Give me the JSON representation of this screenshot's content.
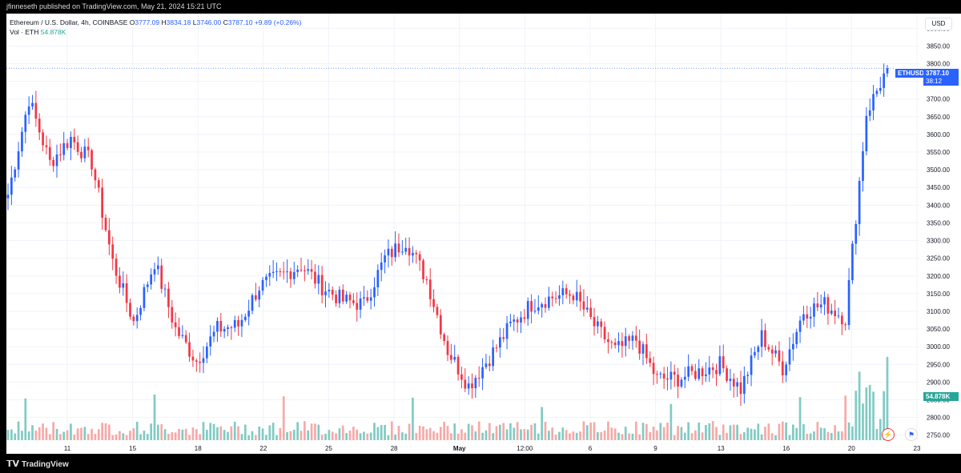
{
  "header": {
    "publisher": "jfinneseth published on TradingView.com, May 21, 2024 15:21 UTC",
    "symbol_desc": "Ethereum / U.S. Dollar, 4h, COINBASE",
    "ohlc": {
      "o_label": "O",
      "open": "3777.09",
      "h_label": "H",
      "high": "3834.18",
      "l_label": "L",
      "low": "3746.00",
      "c_label": "C",
      "close": "3787.10",
      "change": "+9.89 (+0.26%)"
    },
    "vol_label": "Vol · ETH",
    "vol_value": "54.878K"
  },
  "axis": {
    "currency": "USD",
    "price_ticks": [
      "3900.00",
      "3850.00",
      "3800.00",
      "3750.00",
      "3700.00",
      "3650.00",
      "3600.00",
      "3550.00",
      "3500.00",
      "3450.00",
      "3400.00",
      "3350.00",
      "3300.00",
      "3250.00",
      "3200.00",
      "3150.00",
      "3100.00",
      "3050.00",
      "3000.00",
      "2950.00",
      "2900.00",
      "2850.00",
      "2800.00",
      "2750.00"
    ],
    "time_ticks": [
      "11",
      "15",
      "18",
      "22",
      "25",
      "28",
      "May",
      "12:00",
      "6",
      "9",
      "13",
      "16",
      "20",
      "23"
    ]
  },
  "badges": {
    "ticker": "ETHUSD",
    "last_price": "3787.10",
    "countdown": "38:12",
    "volume": "54.878K"
  },
  "footer": {
    "logo_mark": "𝗧𝗩",
    "logo_text": "TradingView"
  },
  "colors": {
    "up": "#2962ff",
    "down": "#f23645",
    "vol_up": "#80cbc4",
    "vol_down": "#f7a9a7"
  },
  "icons": {
    "alert": "flash-icon",
    "flag": "us-flag-icon"
  },
  "chart_data": {
    "type": "candlestick",
    "symbol": "ETHUSD",
    "interval": "4h",
    "ylim": [
      2720,
      3930
    ],
    "grid": true,
    "approx_close_path": [
      {
        "x": "Apr 8",
        "close": 3430
      },
      {
        "x": "Apr 9",
        "close": 3700
      },
      {
        "x": "Apr 10",
        "close": 3520
      },
      {
        "x": "Apr 11",
        "close": 3590
      },
      {
        "x": "Apr 12",
        "close": 3520
      },
      {
        "x": "Apr 13",
        "close": 3240
      },
      {
        "x": "Apr 14",
        "close": 3070
      },
      {
        "x": "Apr 15",
        "close": 3240
      },
      {
        "x": "Apr 16",
        "close": 3050
      },
      {
        "x": "Apr 17",
        "close": 2960
      },
      {
        "x": "Apr 18",
        "close": 3050
      },
      {
        "x": "Apr 19",
        "close": 3060
      },
      {
        "x": "Apr 20",
        "close": 3170
      },
      {
        "x": "Apr 22",
        "close": 3200
      },
      {
        "x": "Apr 23",
        "close": 3230
      },
      {
        "x": "Apr 24",
        "close": 3170
      },
      {
        "x": "Apr 25",
        "close": 3130
      },
      {
        "x": "Apr 26",
        "close": 3120
      },
      {
        "x": "Apr 27",
        "close": 3250
      },
      {
        "x": "Apr 28",
        "close": 3300
      },
      {
        "x": "Apr 29",
        "close": 3190
      },
      {
        "x": "Apr 30",
        "close": 2990
      },
      {
        "x": "May 1",
        "close": 2890
      },
      {
        "x": "May 2",
        "close": 2970
      },
      {
        "x": "May 3",
        "close": 3060
      },
      {
        "x": "May 4",
        "close": 3120
      },
      {
        "x": "May 5",
        "close": 3140
      },
      {
        "x": "May 6",
        "close": 3150
      },
      {
        "x": "May 7",
        "close": 3060
      },
      {
        "x": "May 8",
        "close": 2990
      },
      {
        "x": "May 9",
        "close": 3020
      },
      {
        "x": "May 10",
        "close": 2910
      },
      {
        "x": "May 11",
        "close": 2910
      },
      {
        "x": "May 12",
        "close": 2930
      },
      {
        "x": "May 13",
        "close": 2950
      },
      {
        "x": "May 14",
        "close": 2880
      },
      {
        "x": "May 15",
        "close": 3030
      },
      {
        "x": "May 16",
        "close": 2940
      },
      {
        "x": "May 17",
        "close": 3100
      },
      {
        "x": "May 18",
        "close": 3120
      },
      {
        "x": "May 19",
        "close": 3080
      },
      {
        "x": "May 20",
        "close": 3660
      },
      {
        "x": "May 21",
        "close": 3787
      }
    ]
  }
}
